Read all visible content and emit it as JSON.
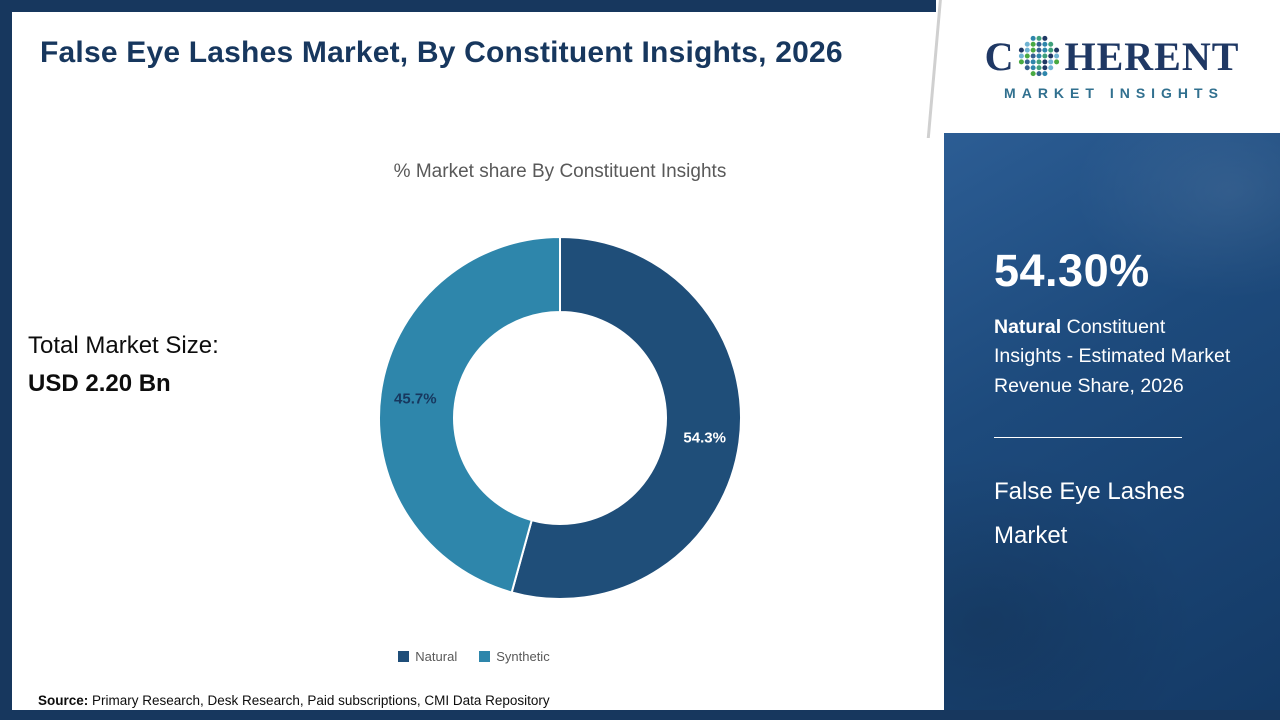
{
  "header": {
    "title": "False Eye Lashes Market, By Constituent Insights, 2026"
  },
  "logo": {
    "brand_c": "C",
    "brand_rest": "HERENT",
    "subtitle": "MARKET INSIGHTS"
  },
  "sidebar": {
    "highlight_value": "54.30%",
    "highlight_bold": "Natural",
    "highlight_rest": " Constituent Insights - Estimated Market Revenue Share, 2026",
    "market_name": "False Eye Lashes Market"
  },
  "main": {
    "chart_title": "% Market share By Constituent Insights",
    "total_label": "Total Market Size:",
    "total_value": "USD 2.20 Bn"
  },
  "footer": {
    "source_label": "Source:",
    "source_text": " Primary Research, Desk Research, Paid subscriptions, CMI Data Repository"
  },
  "colors": {
    "brand_navy": "#17375e",
    "slice_navy": "#1f4e79",
    "slice_teal": "#2e86ab",
    "text_gray": "#595959"
  },
  "chart_data": {
    "type": "pie",
    "donut": true,
    "title": "% Market share By Constituent Insights",
    "categories": [
      "Natural",
      "Synthetic"
    ],
    "values": [
      54.3,
      45.7
    ],
    "labels": [
      "54.3%",
      "45.7%"
    ],
    "colors": [
      "#1f4e79",
      "#2e86ab"
    ],
    "label_colors": [
      "#ffffff",
      "#17375e"
    ],
    "legend_position": "bottom",
    "start_angle_deg": -90,
    "direction": "clockwise",
    "total_market_size": "USD 2.20 Bn"
  }
}
